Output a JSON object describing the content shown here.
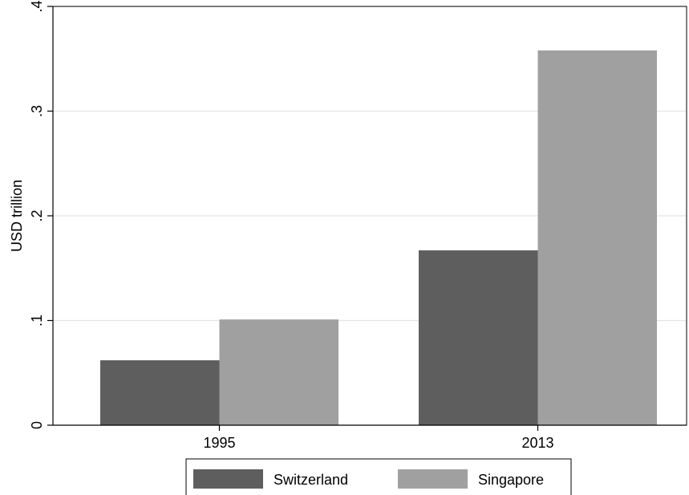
{
  "chart_data": {
    "type": "bar",
    "categories": [
      "1995",
      "2013"
    ],
    "series": [
      {
        "name": "Switzerland",
        "values": [
          0.062,
          0.167
        ],
        "color": "#5e5e5e"
      },
      {
        "name": "Singapore",
        "values": [
          0.101,
          0.358
        ],
        "color": "#a0a0a0"
      }
    ],
    "ylabel": "USD trillion",
    "ylim": [
      0,
      0.4
    ],
    "yticks": [
      {
        "value": 0,
        "label": "0"
      },
      {
        "value": 0.1,
        "label": ".1"
      },
      {
        "value": 0.2,
        "label": ".2"
      },
      {
        "value": 0.3,
        "label": ".3"
      },
      {
        "value": 0.4,
        "label": ".4"
      }
    ],
    "grid": true,
    "legend_position": "bottom"
  }
}
